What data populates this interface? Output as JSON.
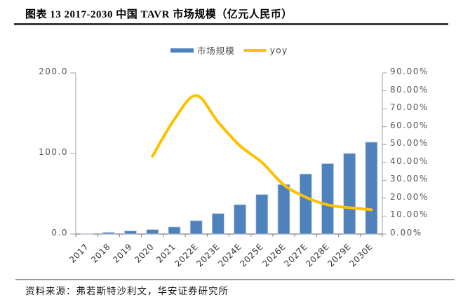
{
  "header": {
    "title": "图表 13 2017-2030 中国 TAVR 市场规模（亿元人民币）"
  },
  "footer": {
    "source": "资料来源：弗若斯特沙利文，华安证券研究所"
  },
  "legend": [
    {
      "label": "市场规模",
      "type": "bar",
      "color": "#4F81BD"
    },
    {
      "label": "yoy",
      "type": "line",
      "color": "#FFC000"
    }
  ],
  "colors": {
    "bar_fill": "#4F81BD",
    "bar_border": "#BCCFE5",
    "line": "#FFC000",
    "axis_vertical": "#A3A3A3",
    "axis_bottom": "#7F7F7F",
    "tick_label": "#595959"
  },
  "chart_data": {
    "type": "bar+line combo",
    "title": "图表 13 2017-2030 中国 TAVR 市场规模（亿元人民币）",
    "categories": [
      "2017",
      "2018",
      "2019",
      "2020",
      "2021",
      "2022E",
      "2023E",
      "2024E",
      "2025E",
      "2026E",
      "2027E",
      "2028E",
      "2029E",
      "2030E"
    ],
    "series": [
      {
        "name": "市场规模",
        "type": "bar",
        "axis": "left",
        "color": "#4F81BD",
        "unit": "亿元人民币",
        "values": [
          0.2,
          2.0,
          3.8,
          5.6,
          8.8,
          16.6,
          25.5,
          36.4,
          49.0,
          61.5,
          74.5,
          87.4,
          100.0,
          114.0
        ]
      },
      {
        "name": "yoy",
        "type": "line",
        "axis": "right",
        "color": "#FFC000",
        "unit": "%",
        "values": [
          null,
          null,
          null,
          43.4,
          64.0,
          77.4,
          62.5,
          49.3,
          40.0,
          27.5,
          20.6,
          16.3,
          14.7,
          13.6
        ]
      }
    ],
    "left_axis": {
      "min": 0,
      "max": 200,
      "ticks": [
        {
          "label": "0.0",
          "value": 0
        },
        {
          "label": "100.0",
          "value": 100
        },
        {
          "label": "200.0",
          "value": 200
        }
      ]
    },
    "right_axis": {
      "min": 0,
      "max": 90,
      "ticks": [
        {
          "label": "0.00%",
          "value": 0
        },
        {
          "label": "10.00%",
          "value": 10
        },
        {
          "label": "20.00%",
          "value": 20
        },
        {
          "label": "30.00%",
          "value": 30
        },
        {
          "label": "40.00%",
          "value": 40
        },
        {
          "label": "50.00%",
          "value": 50
        },
        {
          "label": "60.00%",
          "value": 60
        },
        {
          "label": "70.00%",
          "value": 70
        },
        {
          "label": "80.00%",
          "value": 80
        },
        {
          "label": "90.00%",
          "value": 90
        }
      ]
    },
    "layout": {
      "legend_position": "top-center",
      "grid": false,
      "x_label_rotation": -45,
      "line_smoothed": true
    }
  }
}
